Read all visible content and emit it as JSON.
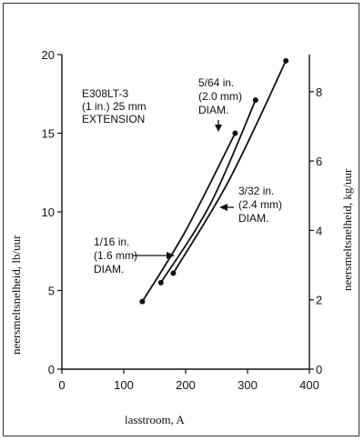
{
  "chart_data": {
    "type": "line",
    "xlabel": "lasstroom, A",
    "ylabel": "neersmeltsnelheid, lb/uur",
    "y2label": "neersmeltsnelheid, kg/uur",
    "xlim": [
      0,
      400
    ],
    "ylim": [
      0,
      20
    ],
    "y2lim": [
      0,
      9.07
    ],
    "x_ticks": [
      "0",
      "100",
      "200",
      "300",
      "400"
    ],
    "y_ticks": [
      "0",
      "5",
      "10",
      "15",
      "20"
    ],
    "y2_ticks": [
      "0",
      "2",
      "4",
      "6",
      "8"
    ],
    "annotation": [
      "E308LT-3",
      "(1 in.) 25 mm",
      "EXTENSION"
    ],
    "series": [
      {
        "labels": [
          "1/16 in.",
          "(1.6 mm)",
          "DIAM."
        ],
        "x": [
          130,
          200,
          280
        ],
        "y": [
          4.3,
          8.8,
          15.0
        ]
      },
      {
        "labels": [
          "5/64 in.",
          "(2.0 mm)",
          "DIAM."
        ],
        "x": [
          160,
          240,
          313
        ],
        "y": [
          5.5,
          10.5,
          17.1
        ]
      },
      {
        "labels": [
          "3/32 in.",
          "(2.4 mm)",
          "DIAM."
        ],
        "x": [
          180,
          270,
          362
        ],
        "y": [
          6.1,
          12.0,
          19.6
        ]
      }
    ]
  }
}
